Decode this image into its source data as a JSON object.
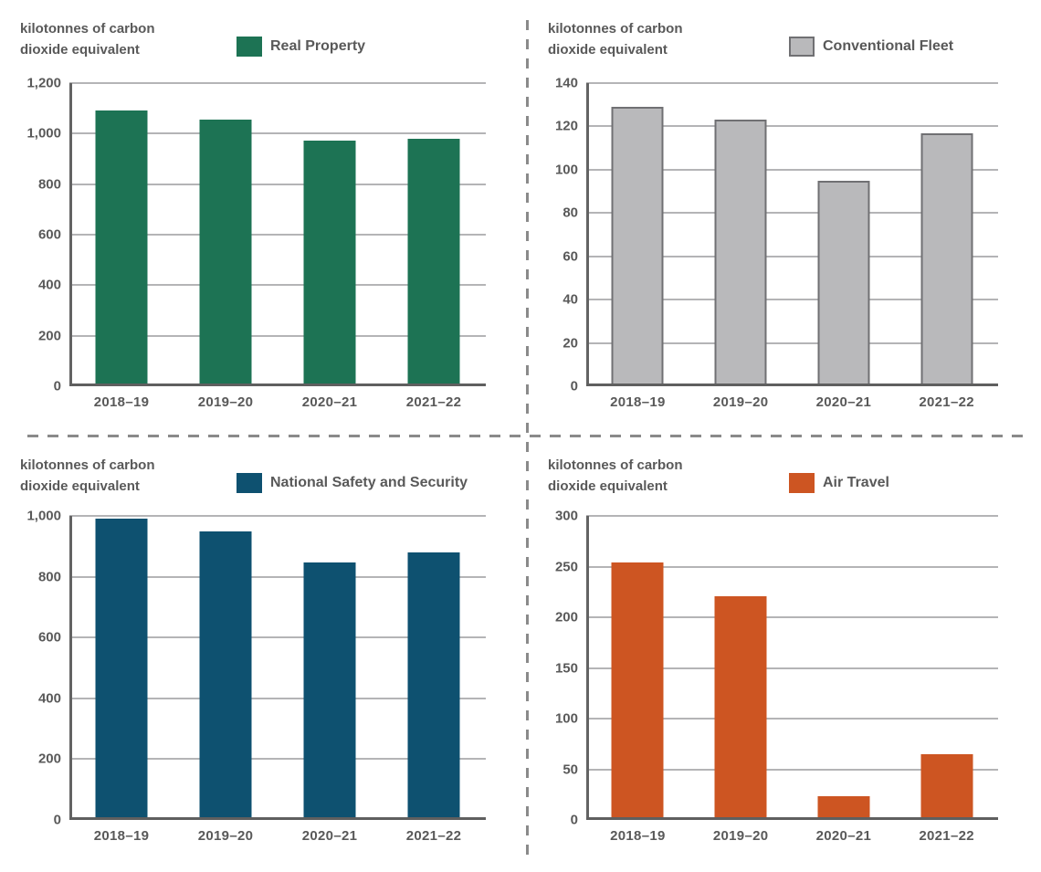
{
  "colors": {
    "text": "#595959",
    "gridline": "#b4b4b6",
    "axis": "#5f5f5f",
    "divider": "#8a8a8a"
  },
  "chart_data": [
    {
      "type": "bar",
      "panel": "top-left",
      "unit_label_lines": [
        "kilotonnes of carbon",
        "dioxide equivalent"
      ],
      "legend": {
        "label": "Real Property",
        "color": "#1d7354",
        "border_color": null,
        "position": "top"
      },
      "categories": [
        "2018–19",
        "2019–20",
        "2020–21",
        "2021–22"
      ],
      "values": [
        1090,
        1055,
        973,
        981
      ],
      "ylim": [
        0,
        1200
      ],
      "ytick_step": 200,
      "grid": true,
      "xlabel": "",
      "ylabel": "kilotonnes of carbon dioxide equivalent"
    },
    {
      "type": "bar",
      "panel": "top-right",
      "unit_label_lines": [
        "kilotonnes of carbon",
        "dioxide equivalent"
      ],
      "legend": {
        "label": "Conventional Fleet",
        "color": "#b9b9bb",
        "border_color": "#707073",
        "position": "top"
      },
      "categories": [
        "2018–19",
        "2019–20",
        "2020–21",
        "2021–22"
      ],
      "values": [
        129,
        123,
        95,
        117
      ],
      "ylim": [
        0,
        140
      ],
      "ytick_step": 20,
      "grid": true,
      "xlabel": "",
      "ylabel": "kilotonnes of carbon dioxide equivalent"
    },
    {
      "type": "bar",
      "panel": "bottom-left",
      "unit_label_lines": [
        "kilotonnes of carbon",
        "dioxide equivalent"
      ],
      "legend": {
        "label": "National Safety and Security",
        "color": "#0e5170",
        "border_color": null,
        "position": "top"
      },
      "categories": [
        "2018–19",
        "2019–20",
        "2020–21",
        "2021–22"
      ],
      "values": [
        990,
        950,
        846,
        880
      ],
      "ylim": [
        0,
        1000
      ],
      "ytick_step": 200,
      "grid": true,
      "xlabel": "",
      "ylabel": "kilotonnes of carbon dioxide equivalent"
    },
    {
      "type": "bar",
      "panel": "bottom-right",
      "unit_label_lines": [
        "kilotonnes of carbon",
        "dioxide equivalent"
      ],
      "legend": {
        "label": "Air Travel",
        "color": "#cd5522",
        "border_color": null,
        "position": "top"
      },
      "categories": [
        "2018–19",
        "2019–20",
        "2020–21",
        "2021–22"
      ],
      "values": [
        254,
        221,
        23,
        65
      ],
      "ylim": [
        0,
        300
      ],
      "ytick_step": 50,
      "grid": true,
      "xlabel": "",
      "ylabel": "kilotonnes of carbon dioxide equivalent"
    }
  ]
}
